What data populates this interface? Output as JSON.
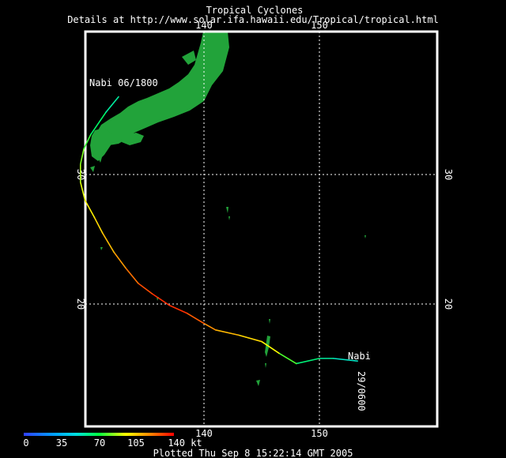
{
  "header": {
    "title": "Tropical Cyclones",
    "subtitle": "Details at http://www.solar.ifa.hawaii.edu/Tropical/tropical.html"
  },
  "axes": {
    "lon_ticks": [
      "140",
      "150"
    ],
    "lat_ticks": [
      "30",
      "20"
    ],
    "lon_range": [
      127,
      157
    ],
    "lat_range": [
      9.5,
      41.5
    ],
    "grid": "dotted"
  },
  "storm": {
    "name": "Nabi",
    "end_label": "Nabi  06/1800",
    "start_name": "Nabi",
    "start_time": "29/0600"
  },
  "legend": {
    "labels": [
      "0",
      "35",
      "70",
      "105",
      "140 kt"
    ],
    "range_kt": [
      0,
      140
    ],
    "colormap": "rainbow blue-cyan-green-yellow-red"
  },
  "footer": {
    "plotted": "Plotted Thu Sep 8 15:22:14 GMT 2005"
  },
  "colors": {
    "background": "#000000",
    "land": "#22a33a",
    "frame": "#ffffff",
    "grid": "#ffffff"
  },
  "chart_data": {
    "type": "line",
    "title": "Tropical Cyclones",
    "xlabel": "",
    "ylabel": "",
    "xlim": [
      127,
      157
    ],
    "ylim": [
      9.5,
      41.5
    ],
    "series": [
      {
        "name": "Nabi",
        "points": [
          {
            "lon": 153.3,
            "lat": 15.6,
            "kt": 50
          },
          {
            "lon": 151.2,
            "lat": 15.8,
            "kt": 55
          },
          {
            "lon": 150.0,
            "lat": 15.8,
            "kt": 60
          },
          {
            "lon": 148.0,
            "lat": 15.4,
            "kt": 65
          },
          {
            "lon": 146.5,
            "lat": 16.2,
            "kt": 90
          },
          {
            "lon": 145.0,
            "lat": 17.1,
            "kt": 100
          },
          {
            "lon": 143.0,
            "lat": 17.6,
            "kt": 105
          },
          {
            "lon": 141.0,
            "lat": 18.0,
            "kt": 112
          },
          {
            "lon": 140.0,
            "lat": 18.5,
            "kt": 120
          },
          {
            "lon": 138.5,
            "lat": 19.3,
            "kt": 130
          },
          {
            "lon": 137.0,
            "lat": 19.9,
            "kt": 135
          },
          {
            "lon": 135.5,
            "lat": 20.8,
            "kt": 130
          },
          {
            "lon": 134.3,
            "lat": 21.6,
            "kt": 125
          },
          {
            "lon": 133.2,
            "lat": 22.8,
            "kt": 118
          },
          {
            "lon": 132.2,
            "lat": 24.0,
            "kt": 110
          },
          {
            "lon": 131.2,
            "lat": 25.5,
            "kt": 105
          },
          {
            "lon": 130.5,
            "lat": 26.7,
            "kt": 100
          },
          {
            "lon": 129.7,
            "lat": 28.0,
            "kt": 95
          },
          {
            "lon": 129.3,
            "lat": 29.4,
            "kt": 90
          },
          {
            "lon": 129.3,
            "lat": 30.8,
            "kt": 85
          },
          {
            "lon": 129.6,
            "lat": 32.0,
            "kt": 80
          },
          {
            "lon": 130.2,
            "lat": 33.1,
            "kt": 70
          },
          {
            "lon": 131.5,
            "lat": 34.8,
            "kt": 60
          },
          {
            "lon": 132.6,
            "lat": 36.0,
            "kt": 55
          }
        ]
      }
    ]
  }
}
